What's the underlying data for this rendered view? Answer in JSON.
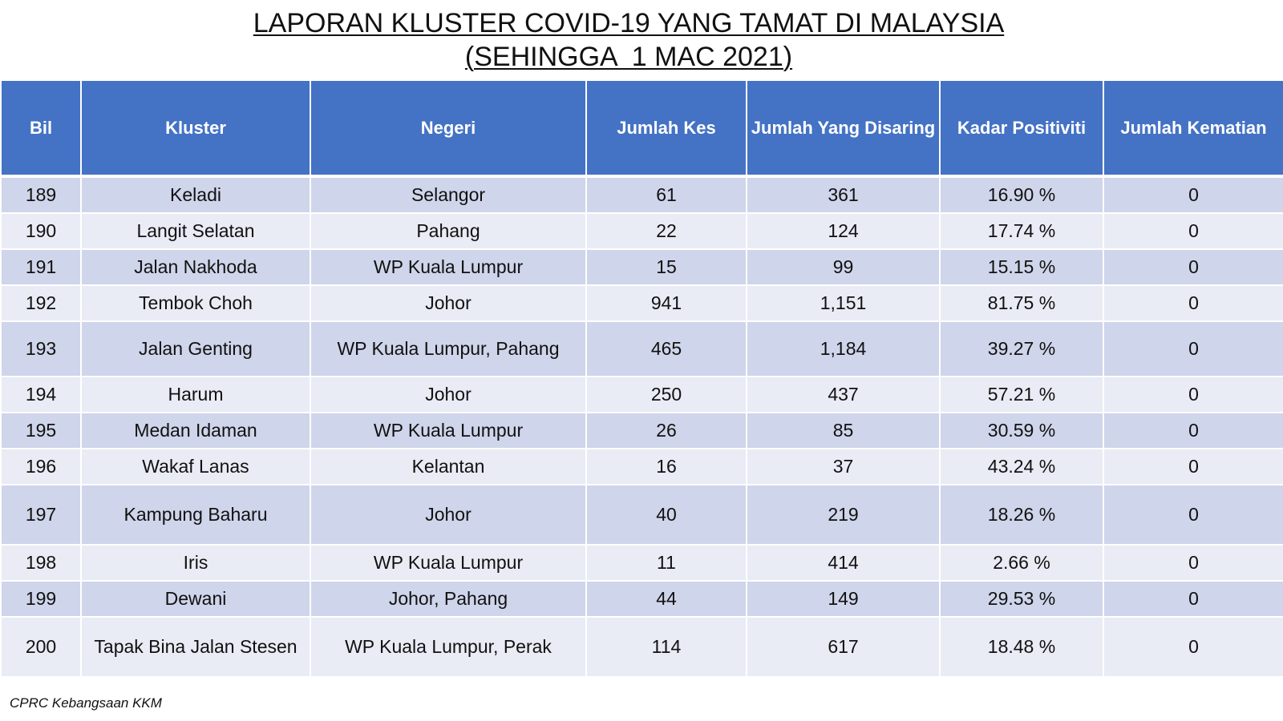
{
  "title": {
    "line1": "LAPORAN KLUSTER COVID-19 YANG TAMAT DI MALAYSIA",
    "line2": "(SEHINGGA  1 MAC 2021)"
  },
  "table": {
    "headers": [
      "Bil",
      "Kluster",
      "Negeri",
      "Jumlah Kes",
      "Jumlah Yang Disaring",
      "Kadar Positiviti",
      "Jumlah Kematian"
    ],
    "rows": [
      [
        "189",
        "Keladi",
        "Selangor",
        "61",
        "361",
        "16.90 %",
        "0"
      ],
      [
        "190",
        "Langit Selatan",
        "Pahang",
        "22",
        "124",
        "17.74 %",
        "0"
      ],
      [
        "191",
        "Jalan Nakhoda",
        "WP Kuala Lumpur",
        "15",
        "99",
        "15.15 %",
        "0"
      ],
      [
        "192",
        "Tembok Choh",
        "Johor",
        "941",
        "1,151",
        "81.75 %",
        "0"
      ],
      [
        "193",
        "Jalan Genting",
        "WP Kuala Lumpur, Pahang",
        "465",
        "1,184",
        "39.27 %",
        "0"
      ],
      [
        "194",
        "Harum",
        "Johor",
        "250",
        "437",
        "57.21 %",
        "0"
      ],
      [
        "195",
        "Medan Idaman",
        "WP Kuala Lumpur",
        "26",
        "85",
        "30.59 %",
        "0"
      ],
      [
        "196",
        "Wakaf Lanas",
        "Kelantan",
        "16",
        "37",
        "43.24 %",
        "0"
      ],
      [
        "197",
        "Kampung Baharu",
        "Johor",
        "40",
        "219",
        "18.26 %",
        "0"
      ],
      [
        "198",
        "Iris",
        "WP Kuala Lumpur",
        "11",
        "414",
        "2.66 %",
        "0"
      ],
      [
        "199",
        "Dewani",
        "Johor, Pahang",
        "44",
        "149",
        "29.53 %",
        "0"
      ],
      [
        "200",
        "Tapak Bina Jalan Stesen",
        "WP Kuala Lumpur, Perak",
        "114",
        "617",
        "18.48 %",
        "0"
      ]
    ]
  },
  "footer": "CPRC Kebangsaan KKM",
  "colors": {
    "header_bg": "#4472c4",
    "row_dark": "#cfd5ea",
    "row_light": "#e9ebf5"
  }
}
